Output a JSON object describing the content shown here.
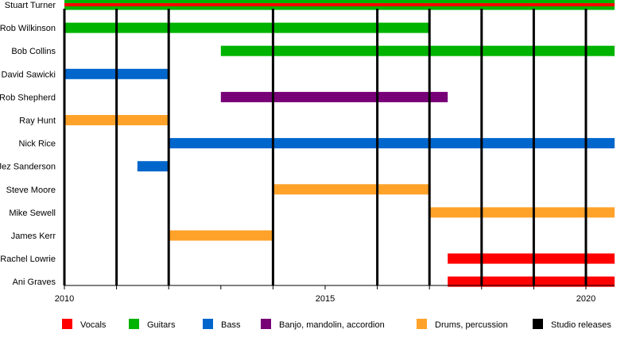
{
  "chart_data": {
    "type": "timeline",
    "xlim": [
      2010,
      2020.55
    ],
    "x_ticks": [
      2010,
      2015,
      2020
    ],
    "x_tick_labels": [
      "2010",
      "2015",
      "2020"
    ],
    "colors": {
      "Vocals": "#ff0000",
      "Guitars": "#00b300",
      "Bass": "#0066cc",
      "Banjo, mandolin, accordion": "#770077",
      "Drums, percussion": "#ffa229",
      "Studio releases": "#000000"
    },
    "legend": [
      "Vocals",
      "Guitars",
      "Bass",
      "Banjo, mandolin, accordion",
      "Drums, percussion",
      "Studio releases"
    ],
    "legend_position": "bottom",
    "studio_releases": [
      2010,
      2011,
      2012,
      2014,
      2016,
      2017,
      2018,
      2019,
      2020
    ],
    "members": [
      {
        "name": "Stuart Turner",
        "bars": [
          {
            "role": "Guitars",
            "start": 2010,
            "end": 2020.55
          },
          {
            "role": "Vocals",
            "start": 2010,
            "end": 2020.55,
            "secondary": true
          }
        ]
      },
      {
        "name": "Rob Wilkinson",
        "bars": [
          {
            "role": "Guitars",
            "start": 2010,
            "end": 2017
          }
        ]
      },
      {
        "name": "Bob Collins",
        "bars": [
          {
            "role": "Guitars",
            "start": 2013,
            "end": 2020.55
          }
        ]
      },
      {
        "name": "David Sawicki",
        "bars": [
          {
            "role": "Bass",
            "start": 2010,
            "end": 2012
          }
        ]
      },
      {
        "name": "Rob Shepherd",
        "bars": [
          {
            "role": "Banjo, mandolin, accordion",
            "start": 2013,
            "end": 2017.35
          }
        ]
      },
      {
        "name": "Ray Hunt",
        "bars": [
          {
            "role": "Drums, percussion",
            "start": 2010,
            "end": 2012
          }
        ]
      },
      {
        "name": "Nick Rice",
        "bars": [
          {
            "role": "Bass",
            "start": 2012,
            "end": 2020.55
          }
        ]
      },
      {
        "name": "Jez Sanderson",
        "bars": [
          {
            "role": "Bass",
            "start": 2011.4,
            "end": 2012
          }
        ]
      },
      {
        "name": "Steve Moore",
        "bars": [
          {
            "role": "Drums, percussion",
            "start": 2014,
            "end": 2017
          }
        ]
      },
      {
        "name": "Mike Sewell",
        "bars": [
          {
            "role": "Drums, percussion",
            "start": 2017,
            "end": 2020.55
          }
        ]
      },
      {
        "name": "James Kerr",
        "bars": [
          {
            "role": "Drums, percussion",
            "start": 2012,
            "end": 2014
          }
        ]
      },
      {
        "name": "Rachel Lowrie",
        "bars": [
          {
            "role": "Vocals",
            "start": 2017.35,
            "end": 2020.55
          }
        ]
      },
      {
        "name": "Ani Graves",
        "bars": [
          {
            "role": "Vocals",
            "start": 2017.35,
            "end": 2020.55
          }
        ]
      }
    ]
  }
}
